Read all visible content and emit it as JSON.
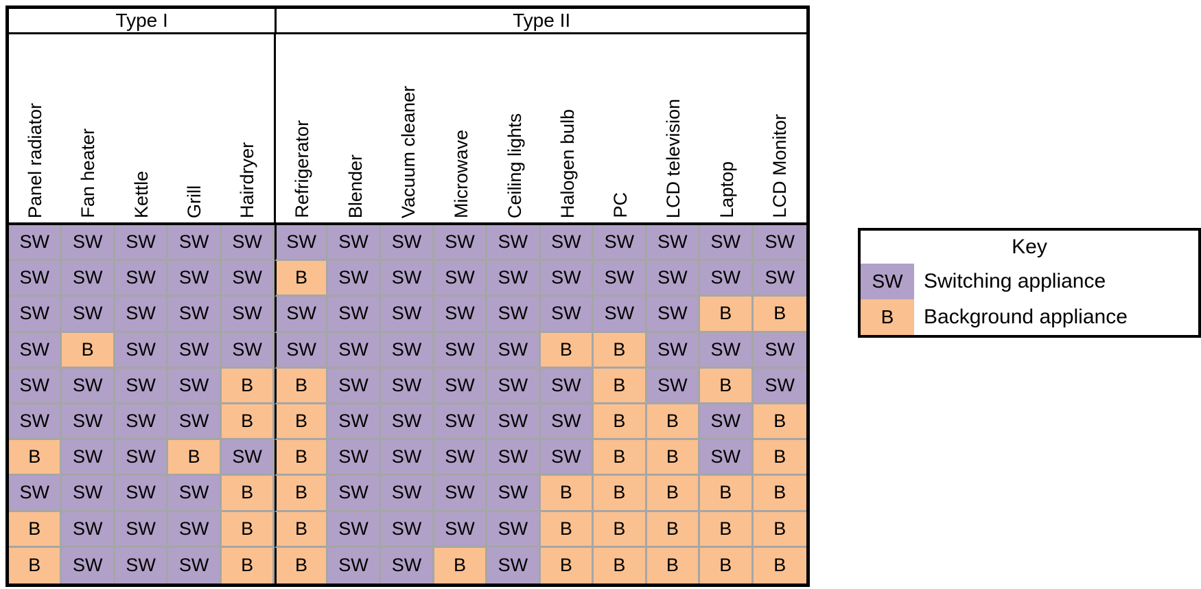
{
  "chart_data": {
    "type": "table",
    "group_headers": [
      {
        "label": "Type I",
        "span": 5
      },
      {
        "label": "Type II",
        "span": 10
      }
    ],
    "columns": [
      "Panel radiator",
      "Fan heater",
      "Kettle",
      "Grill",
      "Hairdryer",
      "Refrigerator",
      "Blender",
      "Vacuum cleaner",
      "Microwave",
      "Ceiling lights",
      "Halogen bulb",
      "PC",
      "LCD television",
      "Laptop",
      "LCD Monitor"
    ],
    "rows": [
      [
        "SW",
        "SW",
        "SW",
        "SW",
        "SW",
        "SW",
        "SW",
        "SW",
        "SW",
        "SW",
        "SW",
        "SW",
        "SW",
        "SW",
        "SW"
      ],
      [
        "SW",
        "SW",
        "SW",
        "SW",
        "SW",
        "B",
        "SW",
        "SW",
        "SW",
        "SW",
        "SW",
        "SW",
        "SW",
        "SW",
        "SW"
      ],
      [
        "SW",
        "SW",
        "SW",
        "SW",
        "SW",
        "SW",
        "SW",
        "SW",
        "SW",
        "SW",
        "SW",
        "SW",
        "SW",
        "B",
        "B"
      ],
      [
        "SW",
        "B",
        "SW",
        "SW",
        "SW",
        "SW",
        "SW",
        "SW",
        "SW",
        "SW",
        "B",
        "B",
        "SW",
        "SW",
        "SW"
      ],
      [
        "SW",
        "SW",
        "SW",
        "SW",
        "B",
        "B",
        "SW",
        "SW",
        "SW",
        "SW",
        "SW",
        "B",
        "SW",
        "B",
        "SW"
      ],
      [
        "SW",
        "SW",
        "SW",
        "SW",
        "B",
        "B",
        "SW",
        "SW",
        "SW",
        "SW",
        "SW",
        "B",
        "B",
        "SW",
        "B"
      ],
      [
        "B",
        "SW",
        "SW",
        "B",
        "SW",
        "B",
        "SW",
        "SW",
        "SW",
        "SW",
        "SW",
        "B",
        "B",
        "SW",
        "B"
      ],
      [
        "SW",
        "SW",
        "SW",
        "SW",
        "B",
        "B",
        "SW",
        "SW",
        "SW",
        "SW",
        "B",
        "B",
        "B",
        "B",
        "B"
      ],
      [
        "B",
        "SW",
        "SW",
        "SW",
        "B",
        "B",
        "SW",
        "SW",
        "SW",
        "SW",
        "B",
        "B",
        "B",
        "B",
        "B"
      ],
      [
        "B",
        "SW",
        "SW",
        "SW",
        "B",
        "B",
        "SW",
        "SW",
        "B",
        "SW",
        "B",
        "B",
        "B",
        "B",
        "B"
      ]
    ],
    "legend": {
      "title": "Key",
      "entries": [
        {
          "code": "SW",
          "label": "Switching appliance",
          "color": "#b1a0c7"
        },
        {
          "code": "B",
          "label": "Background appliance",
          "color": "#fac090"
        }
      ]
    }
  },
  "colors": {
    "switching_cell": "#b1a0c7",
    "background_cell": "#fac090",
    "gridline": "#a6a6a6",
    "border": "#000000",
    "page_background": "#ffffff"
  }
}
